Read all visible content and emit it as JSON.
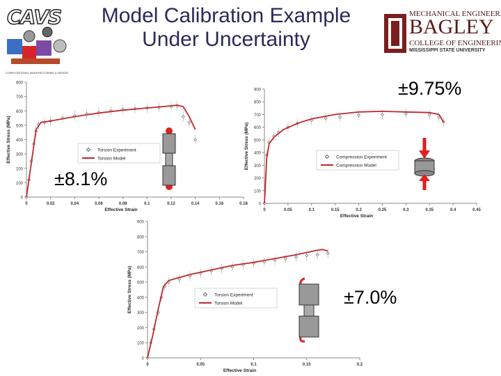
{
  "header": {
    "title_line1": "Model Calibration Example",
    "title_line2": "Under Uncertainty",
    "logo_left": "CAVS",
    "logo_left_sub": "COMPUTATIONAL MANUFACTURING & DESIGN",
    "logo_right_line1": "MECHANICAL ENGINEERING",
    "logo_right_line2": "BAGLEY",
    "logo_right_line3": "COLLEGE OF ENGINEERING",
    "logo_right_line4": "MISSISSIPPI STATE UNIVERSITY"
  },
  "annotations": {
    "p1": "±8.1%",
    "p2": "±9.75%",
    "p3": "±7.0%"
  },
  "colors": {
    "model": "#c0282d",
    "experiment": "#666666",
    "accent_arrow": "#e02020"
  },
  "chart_data": [
    {
      "type": "line",
      "xlabel": "Effective Strain",
      "ylabel": "Effective Stress (MPa)",
      "xlim": [
        0,
        0.18
      ],
      "ylim": [
        0,
        800
      ],
      "xticks": [
        0,
        0.02,
        0.04,
        0.06,
        0.08,
        0.1,
        0.12,
        0.14,
        0.16,
        0.18
      ],
      "xtick_labels": [
        "0",
        "0.02",
        "0.04",
        "0.06",
        "0.08",
        "0.1",
        "0.12",
        "0.14",
        "0.16",
        "0.18"
      ],
      "yticks": [
        0,
        100,
        200,
        300,
        400,
        500,
        600,
        700,
        800
      ],
      "legend_position": "center",
      "series": [
        {
          "name": "Torsion Experiment",
          "style": "markers",
          "x": [
            0,
            0.002,
            0.004,
            0.006,
            0.008,
            0.01,
            0.015,
            0.02,
            0.03,
            0.04,
            0.05,
            0.06,
            0.07,
            0.08,
            0.09,
            0.1,
            0.11,
            0.12,
            0.125,
            0.13,
            0.135,
            0.14
          ],
          "y": [
            0,
            120,
            250,
            370,
            460,
            505,
            520,
            530,
            550,
            565,
            580,
            590,
            600,
            610,
            615,
            620,
            625,
            630,
            635,
            560,
            520,
            400
          ]
        },
        {
          "name": "Torsion Model",
          "style": "line",
          "x": [
            0,
            0.008,
            0.012,
            0.02,
            0.04,
            0.06,
            0.08,
            0.1,
            0.12,
            0.125,
            0.13,
            0.135,
            0.14
          ],
          "y": [
            0,
            470,
            520,
            530,
            560,
            585,
            605,
            620,
            635,
            640,
            630,
            560,
            470
          ]
        }
      ]
    },
    {
      "type": "line",
      "xlabel": "Effective Strain",
      "ylabel": "Effective Stress (MPa)",
      "xlim": [
        0,
        0.45
      ],
      "ylim": [
        0,
        900
      ],
      "xticks": [
        0,
        0.05,
        0.1,
        0.15,
        0.2,
        0.25,
        0.3,
        0.35,
        0.4,
        0.45
      ],
      "xtick_labels": [
        "0",
        "0.05",
        "0.1",
        "0.15",
        "0.2",
        "0.25",
        "0.3",
        "0.35",
        "0.4",
        "0.45"
      ],
      "yticks": [
        0,
        100,
        200,
        300,
        400,
        500,
        600,
        700,
        800,
        900
      ],
      "legend_position": "center-right",
      "series": [
        {
          "name": "Compression Experiment",
          "style": "markers",
          "x": [
            0,
            0.005,
            0.01,
            0.02,
            0.03,
            0.05,
            0.07,
            0.1,
            0.13,
            0.16,
            0.2,
            0.25,
            0.3,
            0.35,
            0.37,
            0.38
          ],
          "y": [
            0,
            380,
            480,
            530,
            560,
            600,
            630,
            655,
            670,
            680,
            695,
            700,
            705,
            700,
            680,
            640
          ]
        },
        {
          "name": "Compression Model",
          "style": "line",
          "x": [
            0,
            0.005,
            0.01,
            0.02,
            0.04,
            0.07,
            0.1,
            0.15,
            0.2,
            0.25,
            0.3,
            0.35,
            0.37,
            0.38
          ],
          "y": [
            0,
            360,
            470,
            520,
            580,
            630,
            665,
            700,
            720,
            725,
            720,
            715,
            700,
            640
          ]
        }
      ]
    },
    {
      "type": "line",
      "xlabel": "Effective Strain",
      "ylabel": "Effective Stress (MPa)",
      "xlim": [
        0,
        0.2
      ],
      "ylim": [
        0,
        900
      ],
      "xticks": [
        0,
        0.05,
        0.1,
        0.15,
        0.2
      ],
      "xtick_labels": [
        "0",
        "0.05",
        "0.1",
        "0.15",
        "0.2"
      ],
      "yticks": [
        0,
        100,
        200,
        300,
        400,
        500,
        600,
        700,
        800,
        900
      ],
      "legend_position": "center",
      "series": [
        {
          "name": "Torsion Experiment",
          "style": "markers",
          "x": [
            0,
            0.003,
            0.006,
            0.01,
            0.013,
            0.016,
            0.02,
            0.03,
            0.04,
            0.05,
            0.06,
            0.07,
            0.08,
            0.09,
            0.1,
            0.11,
            0.12,
            0.13,
            0.14,
            0.15,
            0.16,
            0.17
          ],
          "y": [
            0,
            100,
            190,
            300,
            400,
            470,
            500,
            520,
            540,
            560,
            575,
            590,
            600,
            615,
            625,
            635,
            645,
            655,
            665,
            675,
            680,
            690
          ]
        },
        {
          "name": "Torsion Model",
          "style": "line",
          "x": [
            0,
            0.005,
            0.01,
            0.015,
            0.02,
            0.04,
            0.06,
            0.08,
            0.1,
            0.12,
            0.14,
            0.16,
            0.165,
            0.17
          ],
          "y": [
            0,
            150,
            320,
            470,
            510,
            550,
            580,
            610,
            630,
            655,
            680,
            710,
            715,
            705
          ]
        }
      ]
    }
  ]
}
